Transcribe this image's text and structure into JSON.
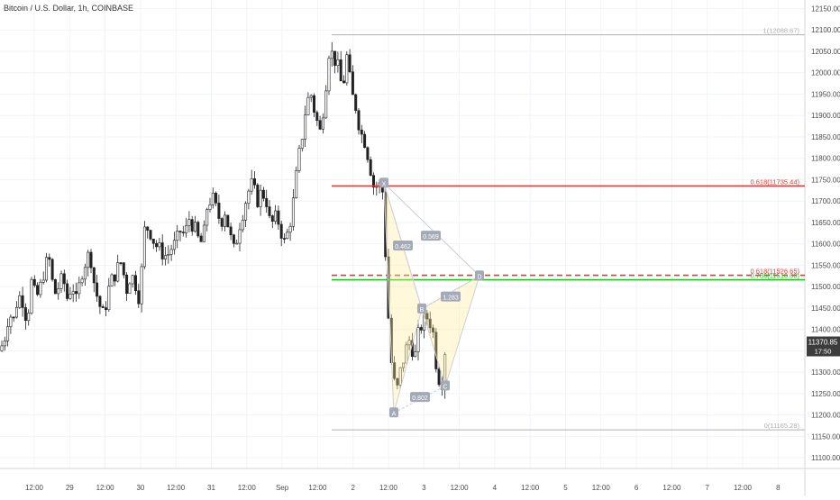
{
  "chart_data": {
    "type": "candlestick",
    "title": "Bitcoin / U.S. Dollar, 1h, COINBASE",
    "ylim": [
      11075,
      12170
    ],
    "y_ticks": [
      11100,
      11150,
      11200,
      11250,
      11300,
      11350,
      11400,
      11450,
      11500,
      11550,
      11600,
      11650,
      11700,
      11750,
      11800,
      11850,
      11900,
      11950,
      12000,
      12050,
      12100,
      12150
    ],
    "x_ticks": [
      "12:00",
      "29",
      "12:00",
      "30",
      "12:00",
      "31",
      "12:00",
      "Sep",
      "12:00",
      "2",
      "12:00",
      "3",
      "12:00",
      "4",
      "12:00",
      "5",
      "12:00",
      "6",
      "12:00",
      "7",
      "12:00",
      "8"
    ],
    "grid": true,
    "candles_hourly_path": [
      [
        0,
        11350
      ],
      [
        5,
        11380
      ],
      [
        10,
        11440
      ],
      [
        15,
        11420
      ],
      [
        20,
        11480
      ],
      [
        25,
        11470
      ],
      [
        30,
        11420
      ],
      [
        35,
        11510
      ],
      [
        40,
        11470
      ],
      [
        45,
        11500
      ],
      [
        50,
        11550
      ],
      [
        55,
        11560
      ],
      [
        60,
        11480
      ],
      [
        65,
        11500
      ],
      [
        70,
        11520
      ],
      [
        75,
        11470
      ],
      [
        80,
        11510
      ],
      [
        85,
        11460
      ],
      [
        90,
        11530
      ],
      [
        95,
        11560
      ],
      [
        100,
        11580
      ],
      [
        105,
        11500
      ],
      [
        110,
        11460
      ],
      [
        115,
        11430
      ],
      [
        120,
        11490
      ],
      [
        125,
        11520
      ],
      [
        130,
        11540
      ],
      [
        135,
        11560
      ],
      [
        140,
        11490
      ],
      [
        145,
        11530
      ],
      [
        150,
        11510
      ],
      [
        155,
        11470
      ],
      [
        160,
        11630
      ],
      [
        165,
        11640
      ],
      [
        170,
        11610
      ],
      [
        175,
        11590
      ],
      [
        180,
        11580
      ],
      [
        185,
        11570
      ],
      [
        190,
        11590
      ],
      [
        195,
        11600
      ],
      [
        200,
        11630
      ],
      [
        205,
        11620
      ],
      [
        210,
        11660
      ],
      [
        215,
        11640
      ],
      [
        220,
        11610
      ],
      [
        225,
        11600
      ],
      [
        230,
        11690
      ],
      [
        235,
        11710
      ],
      [
        240,
        11680
      ],
      [
        245,
        11650
      ],
      [
        250,
        11680
      ],
      [
        255,
        11620
      ],
      [
        260,
        11580
      ],
      [
        265,
        11640
      ],
      [
        270,
        11680
      ],
      [
        275,
        11720
      ],
      [
        280,
        11740
      ],
      [
        285,
        11700
      ],
      [
        290,
        11720
      ],
      [
        295,
        11710
      ],
      [
        300,
        11640
      ],
      [
        305,
        11660
      ],
      [
        310,
        11650
      ],
      [
        315,
        11600
      ],
      [
        320,
        11630
      ],
      [
        325,
        11690
      ],
      [
        330,
        11780
      ],
      [
        335,
        11850
      ],
      [
        340,
        11930
      ],
      [
        345,
        11950
      ],
      [
        350,
        11900
      ],
      [
        355,
        11860
      ],
      [
        360,
        11940
      ],
      [
        365,
        12050
      ],
      [
        370,
        12040
      ],
      [
        375,
        12010
      ],
      [
        380,
        11960
      ],
      [
        385,
        12040
      ],
      [
        390,
        11950
      ],
      [
        395,
        11920
      ],
      [
        400,
        11860
      ],
      [
        405,
        11840
      ],
      [
        410,
        11790
      ],
      [
        415,
        11730
      ],
      [
        420,
        11740
      ],
      [
        425,
        11720
      ],
      [
        430,
        11460
      ],
      [
        435,
        11300
      ],
      [
        440,
        11250
      ],
      [
        445,
        11310
      ],
      [
        450,
        11350
      ],
      [
        455,
        11380
      ],
      [
        460,
        11330
      ],
      [
        465,
        11400
      ],
      [
        470,
        11420
      ],
      [
        475,
        11430
      ],
      [
        480,
        11400
      ],
      [
        485,
        11300
      ],
      [
        490,
        11270
      ],
      [
        495,
        11380
      ],
      [
        497,
        11420
      ]
    ],
    "hlines": [
      {
        "price": 12088.67,
        "label": "1(12088.67)",
        "color": "#b0b0b0"
      },
      {
        "price": 11735.44,
        "label": "0.618(11735.44)",
        "color": "#e53935"
      },
      {
        "price": 11526.65,
        "label": "0.618(11526.65)",
        "color": "#e53935",
        "dash": true
      },
      {
        "price": 11516.0,
        "label": "0.786(11516.00)",
        "color": "#21c321"
      },
      {
        "price": 11165.28,
        "label": "0(11165.28)",
        "color": "#b0b0b0"
      }
    ],
    "pattern": {
      "points": [
        {
          "name": "X",
          "x": 426,
          "price": 11742
        },
        {
          "name": "A",
          "x": 437,
          "price": 11205
        },
        {
          "name": "B",
          "x": 468,
          "price": 11448
        },
        {
          "name": "C",
          "x": 494,
          "price": 11268
        },
        {
          "name": "D",
          "x": 532,
          "price": 11525
        }
      ],
      "ratios": [
        {
          "label": "0.462",
          "x": 447,
          "price": 11595
        },
        {
          "label": "0.569",
          "x": 478,
          "price": 11618
        },
        {
          "label": "0.802",
          "x": 466,
          "price": 11241
        },
        {
          "label": "1.283",
          "x": 500,
          "price": 11476
        }
      ]
    },
    "price_label": {
      "price": 11370.85,
      "text": "11370.85",
      "subtext": "17:50"
    }
  }
}
